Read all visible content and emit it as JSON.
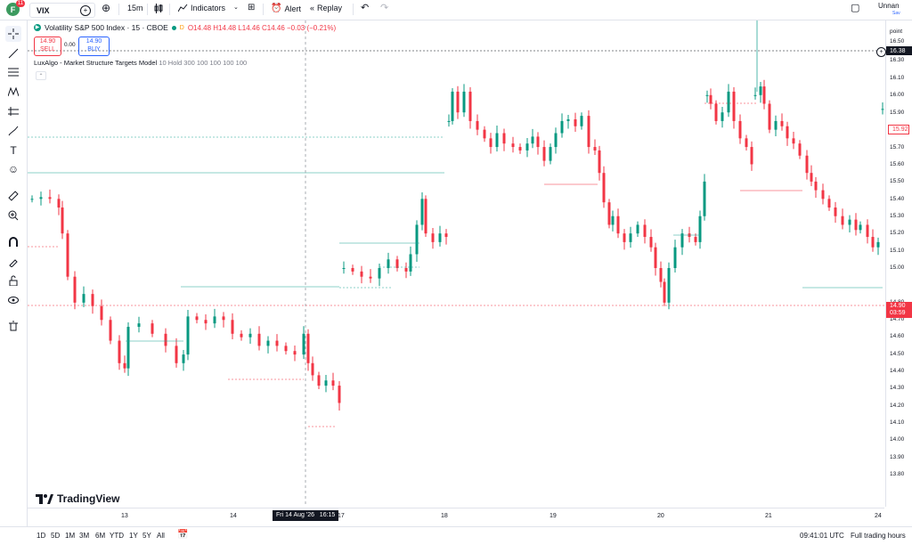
{
  "topbar": {
    "avatar_letter": "F",
    "avatar_badge": "11",
    "symbol": "VIX",
    "interval": "15m",
    "indicators_label": "Indicators",
    "alert_label": "Alert",
    "replay_label": "Replay",
    "layout_name": "Unnan",
    "layout_sub": "Sav"
  },
  "legend": {
    "title": "Volatility S&P 500 Index · 15 · CBOE",
    "ohlc": "O14.48 H14.48 L14.46 C14.46 −0.03 (−0.21%)",
    "sell_price": "14.90",
    "sell_label": "SELL",
    "spread": "0.00",
    "buy_price": "14.90",
    "buy_label": "BUY",
    "indicator_name": "LuxAlgo - Market Structure Targets Model",
    "indicator_args": "10 Hold 300 100 100 100 100"
  },
  "price_axis": {
    "unit_label": "point",
    "ticks": [
      "16.50",
      "16.30",
      "16.10",
      "16.00",
      "15.90",
      "15.80",
      "15.70",
      "15.60",
      "15.50",
      "15.40",
      "15.30",
      "15.20",
      "15.10",
      "15.00",
      "14.90",
      "14.80",
      "14.70",
      "14.60",
      "14.50",
      "14.40",
      "14.30",
      "14.20",
      "14.10",
      "14.00",
      "13.90",
      "13.80"
    ],
    "crosshair_price": "16.38",
    "current_price": "14.90",
    "countdown": "03:59",
    "indicator_price": "15.92"
  },
  "time_axis": {
    "ticks": [
      "13",
      "14",
      "17",
      "18",
      "19",
      "20",
      "21",
      "24"
    ],
    "crosshair_time": "Fri 14 Aug '26   16:15"
  },
  "bottombar": {
    "ranges": [
      "1D",
      "5D",
      "1M",
      "3M",
      "6M",
      "YTD",
      "1Y",
      "5Y",
      "All"
    ],
    "clock": "09:41:01 UTC",
    "session": "Full trading hours"
  },
  "branding": {
    "logo_text": "TradingView"
  },
  "colors": {
    "up": "#089981",
    "down": "#f23645",
    "accent": "#2962ff",
    "brand_green": "#3c9a5f"
  }
}
